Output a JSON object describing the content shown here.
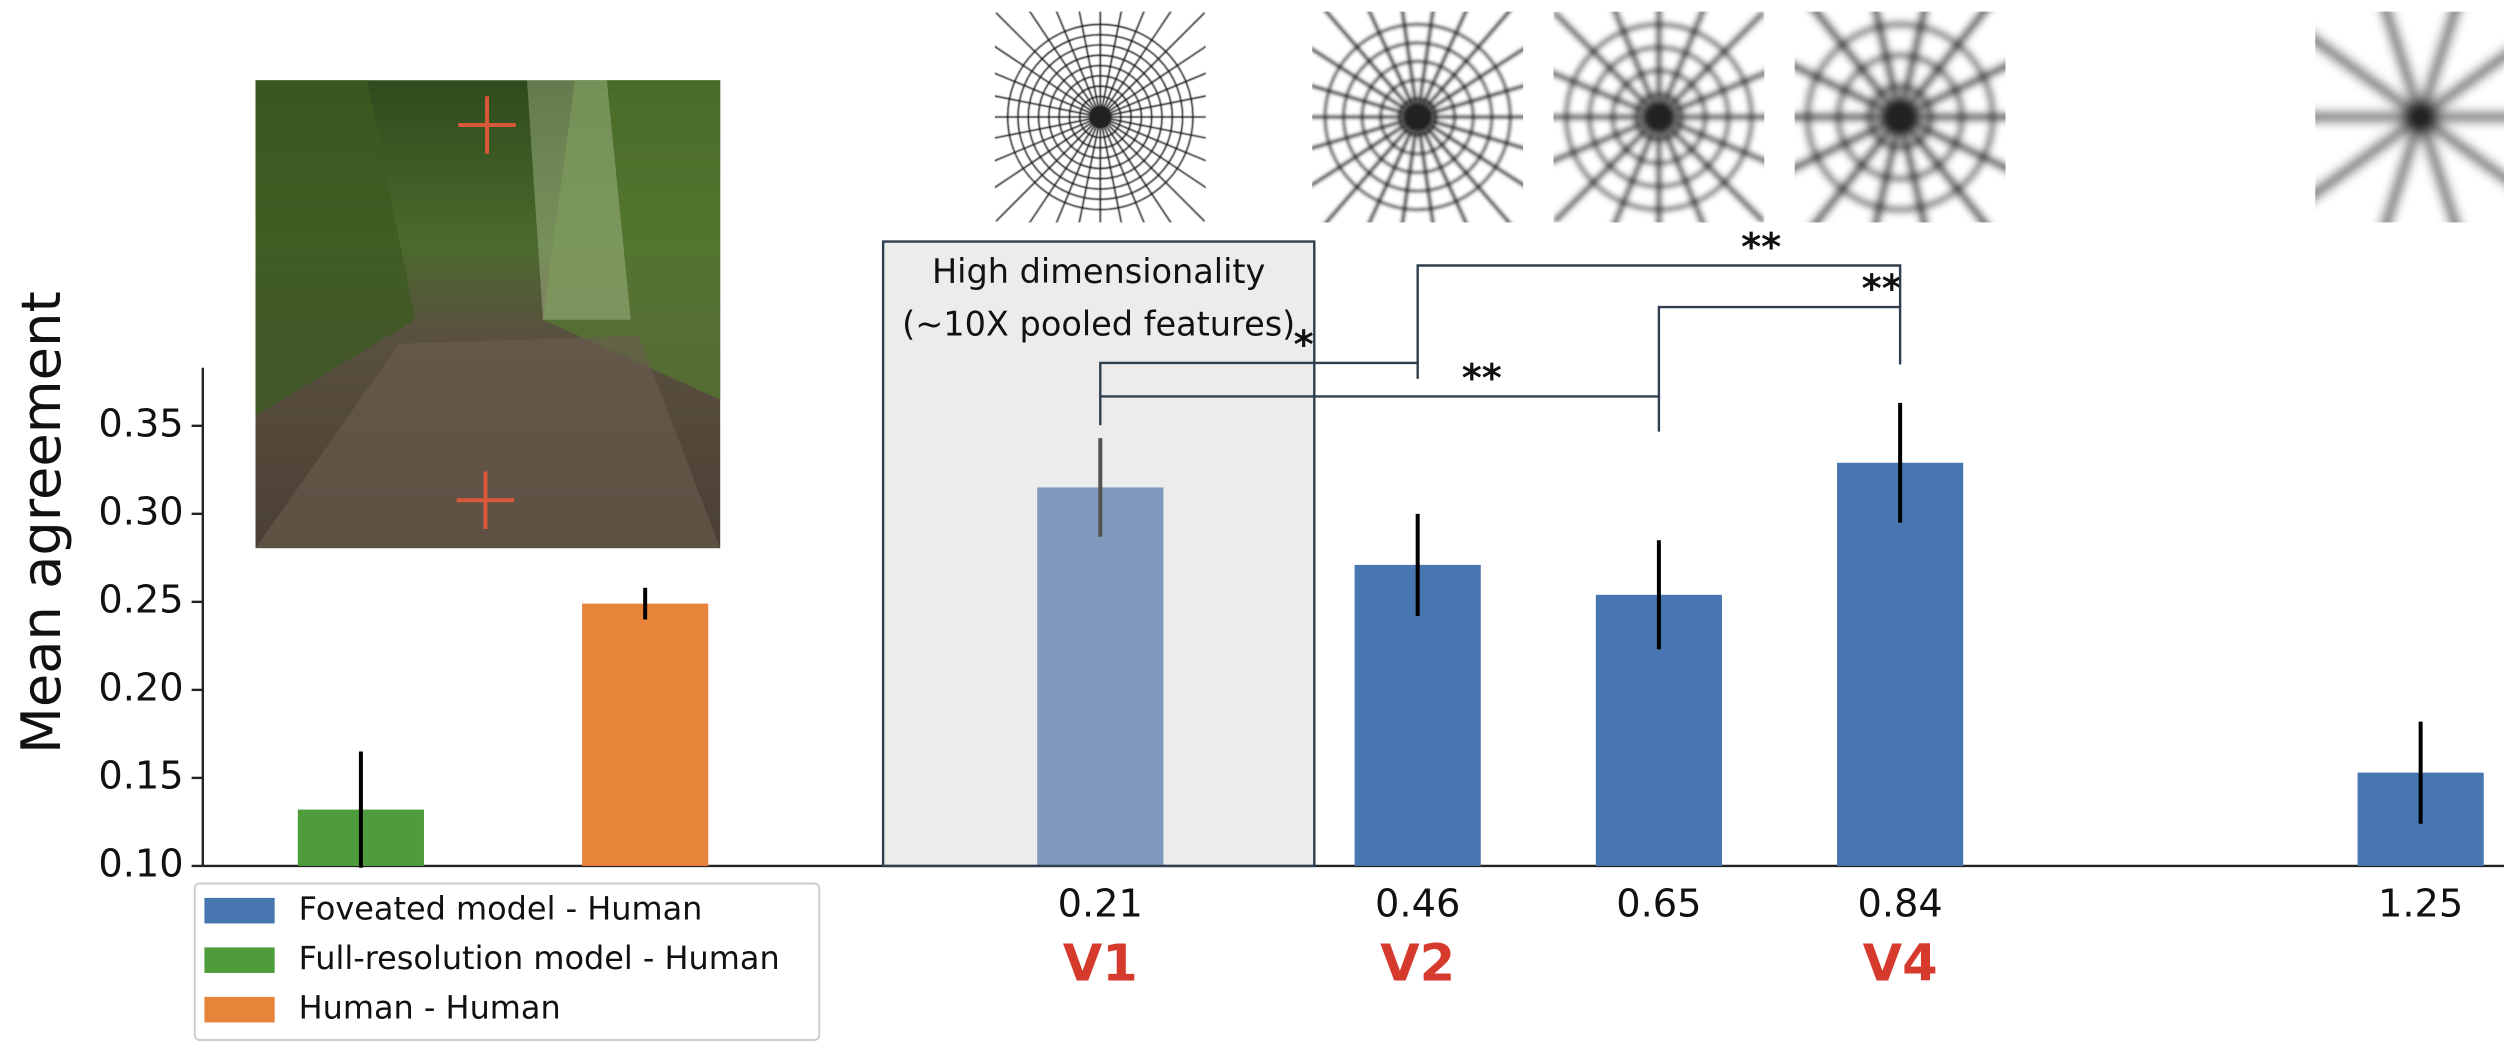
{
  "chart_data": {
    "type": "bar",
    "y_label": "Mean agreement",
    "ylim": [
      0.1,
      0.383
    ],
    "yticks": [
      {
        "value": 0.1,
        "label": "0.10"
      },
      0.15,
      {
        "value": 0.2,
        "label": "0.20"
      },
      0.25,
      {
        "value": 0.3,
        "label": "0.30"
      },
      0.35
    ],
    "xticks": [
      0.21,
      0.46,
      0.65,
      0.84,
      1.25
    ],
    "series": [
      {
        "name": "Foveated model - Human",
        "color": "#4876b0",
        "x": [
          0.21,
          0.46,
          0.65,
          0.84,
          1.25
        ],
        "values": [
          0.315,
          0.271,
          0.254,
          0.329,
          0.153
        ],
        "errors": [
          0.028,
          0.029,
          0.031,
          0.034,
          0.029
        ]
      },
      {
        "name": "Full-resolution model - Human",
        "color": "#4e9c3c",
        "values": [
          0.132
        ],
        "errors": [
          0.033
        ]
      },
      {
        "name": "Human - Human",
        "color": "#e8843a",
        "values": [
          0.249
        ],
        "errors": [
          0.009
        ]
      }
    ],
    "box_text": [
      "High dimensionality",
      "(~10X pooled features)"
    ],
    "area_label_color": "#d63a2c",
    "area_labels": [
      {
        "x": 0.21,
        "label": "V1"
      },
      {
        "x": 0.46,
        "label": "V2"
      },
      {
        "x": 0.84,
        "label": "V4"
      }
    ],
    "significance": [
      {
        "from": 0.21,
        "to": 0.46,
        "label": "*"
      },
      {
        "from": 0.21,
        "to": 0.65,
        "label": "**"
      },
      {
        "from": 0.65,
        "to": 0.84,
        "label": "**"
      },
      {
        "from": 0.46,
        "to": 0.84,
        "label": "**"
      }
    ]
  }
}
